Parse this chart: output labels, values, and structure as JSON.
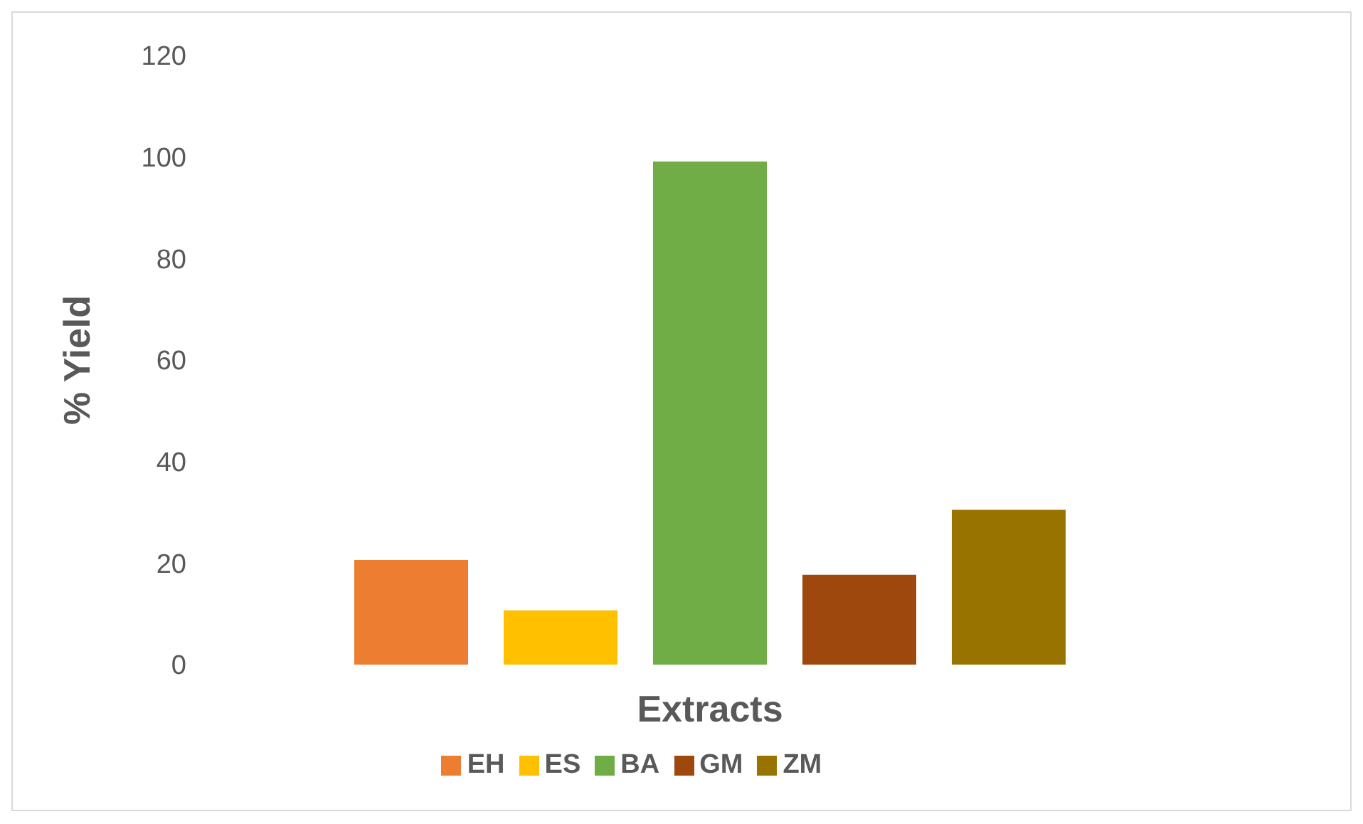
{
  "chart_data": {
    "type": "bar",
    "xlabel": "Extracts",
    "ylabel": "% Yield",
    "categories": [
      null
    ],
    "series": [
      {
        "name": "EH",
        "color": "#ed7d31",
        "values": [
          20.6
        ]
      },
      {
        "name": "ES",
        "color": "#ffc000",
        "values": [
          10.7
        ]
      },
      {
        "name": "BA",
        "color": "#70ad47",
        "values": [
          99.1
        ]
      },
      {
        "name": "GM",
        "color": "#9e480e",
        "values": [
          17.7
        ]
      },
      {
        "name": "ZM",
        "color": "#997300",
        "values": [
          30.5
        ]
      }
    ],
    "ylim": [
      0,
      120
    ],
    "yticks": [
      0,
      20,
      40,
      60,
      80,
      100,
      120
    ],
    "grid": false,
    "legend": "bottom"
  }
}
